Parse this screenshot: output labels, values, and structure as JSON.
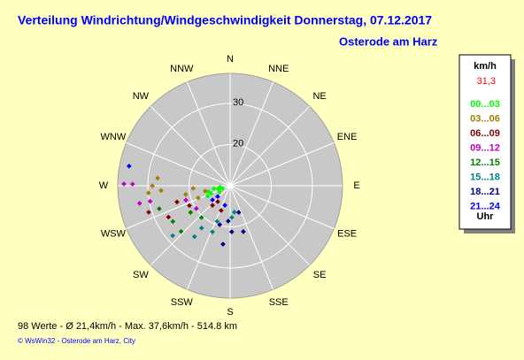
{
  "chart_data": {
    "type": "polar-scatter",
    "title": "Verteilung Windrichtung/Windgeschwindigkeit  Donnerstag, 07.12.2017",
    "subtitle": "Osterode am Harz",
    "direction_labels": [
      "N",
      "NNE",
      "NE",
      "ENE",
      "E",
      "ESE",
      "SE",
      "SSE",
      "S",
      "SSW",
      "SW",
      "WSW",
      "W",
      "WNW",
      "NW",
      "NNW"
    ],
    "rlim": [
      10,
      37.3
    ],
    "rticks": [
      20,
      30
    ],
    "legend_title": "km/h",
    "legend_value": "31,3",
    "legend_unit": "Uhr",
    "series": [
      {
        "name": "00...03",
        "color": "#00ff00",
        "directions": [
          250,
          255,
          260,
          248,
          245,
          262,
          240,
          255
        ],
        "values": [
          12,
          13,
          14,
          15,
          16,
          12.5,
          13,
          15.5
        ]
      },
      {
        "name": "03...06",
        "color": "#a08000",
        "directions": [
          276,
          270,
          265,
          266,
          259,
          249,
          258,
          266
        ],
        "values": [
          27.7,
          28.9,
          29.9,
          26.8,
          21,
          18.3,
          16.2,
          19
        ]
      },
      {
        "name": "06...09",
        "color": "#800000",
        "directions": [
          252,
          243,
          244,
          222,
          200,
          218,
          253
        ],
        "values": [
          30.8,
          26.8,
          21,
          16.4,
          16.4,
          14.9,
          23.5
        ]
      },
      {
        "name": "09...12",
        "color": "#c000c0",
        "directions": [
          271,
          271,
          259,
          259,
          252,
          236
        ],
        "values": [
          35.8,
          33.7,
          32.4,
          29.8,
          21.3,
          19.9
        ]
      },
      {
        "name": "12...15",
        "color": "#008000",
        "directions": [
          238,
          252,
          227,
          236,
          222
        ],
        "values": [
          26.4,
          28.1,
          26.3,
          21.6,
          20.4
        ]
      },
      {
        "name": "15...18",
        "color": "#008080",
        "directions": [
          229,
          215,
          201,
          177,
          171,
          214,
          200
        ],
        "values": [
          28.5,
          25.1,
          22,
          17.7,
          16.5,
          22.4,
          19.2
        ]
      },
      {
        "name": "18...21",
        "color": "#000080",
        "directions": [
          187,
          178,
          162,
          164,
          195,
          183
        ],
        "values": [
          24.3,
          21.2,
          16.8,
          21.6,
          19.8,
          18.6
        ]
      },
      {
        "name": "21...24",
        "color": "#0000ff",
        "directions": [
          281,
          229,
          231,
          195
        ],
        "values": [
          35,
          14,
          15.5,
          14.9
        ]
      }
    ],
    "footer": "98 Werte   -   Ø 21,4km/h  -  Max. 37,6km/h   -   514.8 km",
    "credit": "© WsWin32  -  Osterode am Harz, City"
  }
}
